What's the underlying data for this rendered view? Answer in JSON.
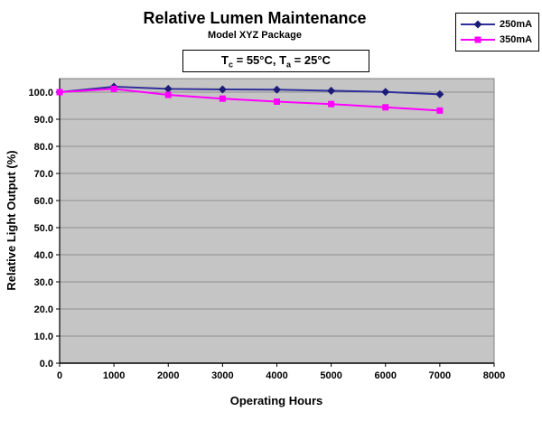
{
  "chart": {
    "title": "Relative Lumen Maintenance",
    "subtitle": "Model XYZ Package"
  },
  "annotation": {
    "t1": "T",
    "sub1": "c",
    "mid": " = 55°C, T",
    "sub2": "a",
    "end": " = 25°C"
  },
  "chart_data": {
    "type": "line",
    "title": "Relative Lumen Maintenance",
    "subtitle": "Model XYZ Package",
    "xlabel": "Operating Hours",
    "ylabel": "Relative Light Output (%)",
    "x": [
      0,
      1000,
      2000,
      3000,
      4000,
      5000,
      6000,
      7000
    ],
    "series": [
      {
        "name": "250mA",
        "marker": "diamond",
        "color": "#30309A",
        "marker_color": "#1C1C78",
        "values": [
          100.0,
          102.0,
          101.2,
          101.0,
          100.9,
          100.5,
          100.1,
          99.2
        ]
      },
      {
        "name": "350mA",
        "marker": "square",
        "color": "#FF00FF",
        "marker_color": "#FF00FF",
        "values": [
          100.0,
          101.2,
          99.0,
          97.6,
          96.5,
          95.6,
          94.4,
          93.2
        ]
      }
    ],
    "xlim": [
      0,
      8000
    ],
    "ylim": [
      0,
      105
    ],
    "x_ticks": [
      0,
      1000,
      2000,
      3000,
      4000,
      5000,
      6000,
      7000,
      8000
    ],
    "x_tick_labels": [
      "0",
      "1000",
      "2000",
      "3000",
      "4000",
      "5000",
      "6000",
      "7000",
      "8000"
    ],
    "y_ticks": [
      0,
      10,
      20,
      30,
      40,
      50,
      60,
      70,
      80,
      90,
      100
    ],
    "y_tick_labels": [
      "0.0",
      "10.0",
      "20.0",
      "30.0",
      "40.0",
      "50.0",
      "60.0",
      "70.0",
      "80.0",
      "90.0",
      "100.0"
    ],
    "grid": true,
    "legend_position": "top-right",
    "plot_bg": "#C5C5C5",
    "grid_color": "#909090",
    "border_color": "#7F7F7F",
    "axis_color": "#000000"
  }
}
